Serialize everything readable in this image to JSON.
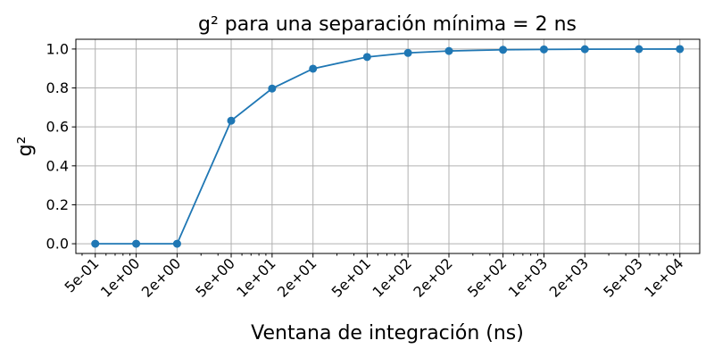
{
  "chart_data": {
    "type": "line",
    "title": "g² para una separación mínima = 2 ns",
    "xlabel": "Ventana de integración (ns)",
    "ylabel": "g²",
    "x_scale": "log",
    "xlim": [
      0.36,
      14000
    ],
    "ylim": [
      -0.05,
      1.05
    ],
    "grid": true,
    "x_ticks": [
      0.5,
      1,
      2,
      5,
      10,
      20,
      50,
      100,
      200,
      500,
      1000,
      2000,
      5000,
      10000
    ],
    "x_tick_labels": [
      "5e-01",
      "1e+00",
      "2e+00",
      "5e+00",
      "1e+01",
      "2e+01",
      "5e+01",
      "1e+02",
      "2e+02",
      "5e+02",
      "1e+03",
      "2e+03",
      "5e+03",
      "1e+04"
    ],
    "y_ticks": [
      0.0,
      0.2,
      0.4,
      0.6,
      0.8,
      1.0
    ],
    "y_tick_labels": [
      "0.0",
      "0.2",
      "0.4",
      "0.6",
      "0.8",
      "1.0"
    ],
    "series": [
      {
        "color": "#1f77b4",
        "marker": "circle",
        "x": [
          0.5,
          1,
          2,
          5,
          10,
          20,
          50,
          100,
          200,
          500,
          1000,
          2000,
          5000,
          10000
        ],
        "y": [
          0.0,
          0.0,
          0.0,
          0.632,
          0.797,
          0.899,
          0.959,
          0.98,
          0.99,
          0.996,
          0.998,
          0.999,
          0.9996,
          0.9998
        ]
      }
    ]
  }
}
